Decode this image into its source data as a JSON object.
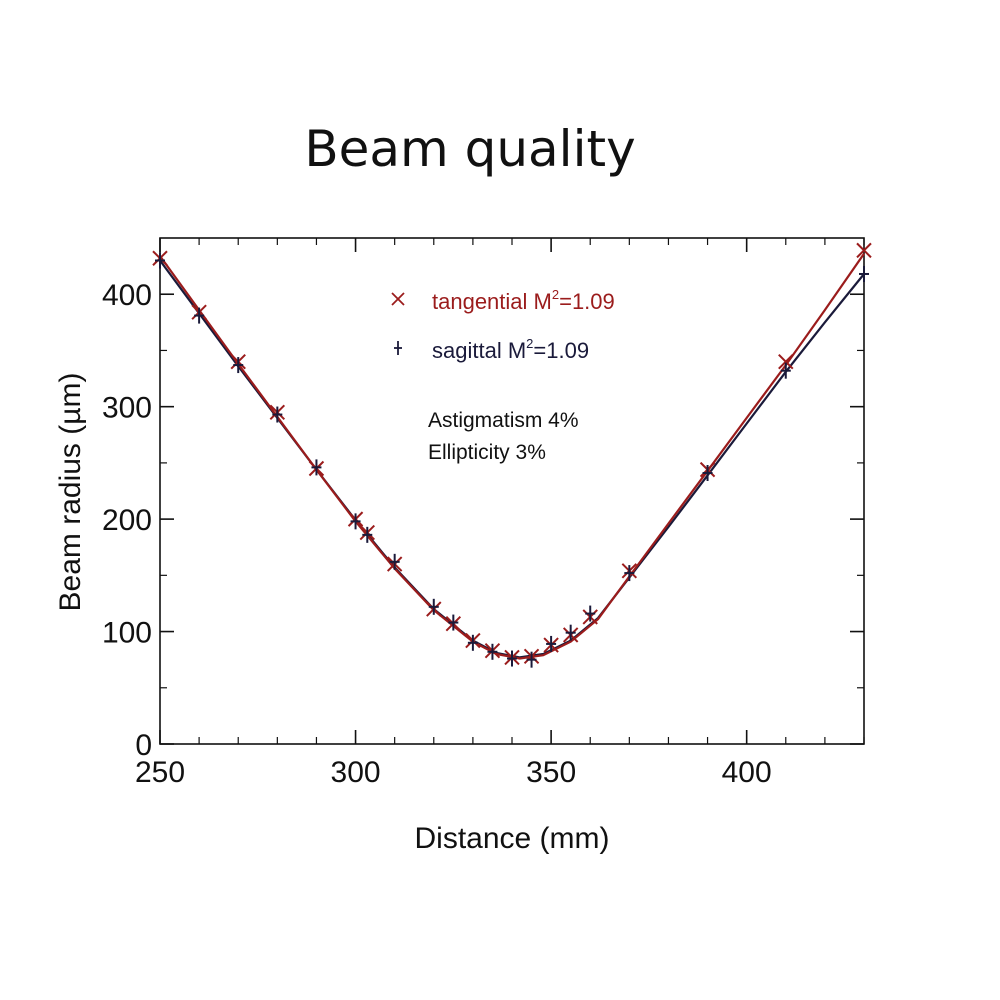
{
  "chart_data": {
    "type": "scatter",
    "title": "Beam quality",
    "xlabel": "Distance (mm)",
    "ylabel": "Beam radius (µm)",
    "xlim": [
      250,
      430
    ],
    "ylim": [
      0,
      450
    ],
    "xticks": [
      250,
      300,
      350,
      400
    ],
    "yticks": [
      0,
      100,
      200,
      300,
      400
    ],
    "grid": false,
    "legend_position": "top-center",
    "series": [
      {
        "name": "tangential M²=1.09",
        "legend_label": "tangential M",
        "legend_suffix": "=1.09",
        "marker": "x",
        "color": "#9b1c1c",
        "points": [
          [
            250,
            432
          ],
          [
            260,
            384
          ],
          [
            270,
            340
          ],
          [
            280,
            295
          ],
          [
            290,
            245
          ],
          [
            300,
            200
          ],
          [
            303,
            188
          ],
          [
            310,
            160
          ],
          [
            320,
            120
          ],
          [
            325,
            107
          ],
          [
            330,
            92
          ],
          [
            335,
            83
          ],
          [
            340,
            77
          ],
          [
            345,
            78
          ],
          [
            350,
            88
          ],
          [
            355,
            97
          ],
          [
            360,
            113
          ],
          [
            370,
            154
          ],
          [
            390,
            244
          ],
          [
            410,
            340
          ],
          [
            430,
            439
          ]
        ],
        "fit": [
          [
            250,
            434
          ],
          [
            260,
            386
          ],
          [
            270,
            338
          ],
          [
            280,
            291
          ],
          [
            290,
            244
          ],
          [
            300,
            198
          ],
          [
            310,
            156
          ],
          [
            320,
            119
          ],
          [
            330,
            91
          ],
          [
            336,
            80
          ],
          [
            342,
            76
          ],
          [
            348,
            79
          ],
          [
            355,
            91
          ],
          [
            362,
            111
          ],
          [
            370,
            149
          ],
          [
            380,
            196
          ],
          [
            390,
            243
          ],
          [
            400,
            290
          ],
          [
            410,
            337
          ],
          [
            420,
            386
          ],
          [
            430,
            436
          ]
        ]
      },
      {
        "name": "sagittal M²=1.09",
        "legend_label": "sagittal M",
        "legend_suffix": "=1.09",
        "marker": "+",
        "color": "#1a1a3a",
        "points": [
          [
            250,
            430
          ],
          [
            260,
            381
          ],
          [
            270,
            337
          ],
          [
            280,
            293
          ],
          [
            290,
            246
          ],
          [
            300,
            198
          ],
          [
            303,
            186
          ],
          [
            310,
            162
          ],
          [
            320,
            122
          ],
          [
            325,
            108
          ],
          [
            330,
            90
          ],
          [
            335,
            82
          ],
          [
            340,
            76
          ],
          [
            345,
            75
          ],
          [
            350,
            89
          ],
          [
            355,
            99
          ],
          [
            360,
            116
          ],
          [
            370,
            152
          ],
          [
            390,
            241
          ],
          [
            410,
            332
          ],
          [
            430,
            418
          ]
        ],
        "fit": [
          [
            250,
            430
          ],
          [
            260,
            383
          ],
          [
            270,
            336
          ],
          [
            280,
            290
          ],
          [
            290,
            244
          ],
          [
            300,
            199
          ],
          [
            310,
            157
          ],
          [
            320,
            120
          ],
          [
            330,
            92
          ],
          [
            336,
            81
          ],
          [
            342,
            77
          ],
          [
            348,
            80
          ],
          [
            355,
            92
          ],
          [
            362,
            112
          ],
          [
            370,
            148
          ],
          [
            380,
            193
          ],
          [
            390,
            239
          ],
          [
            400,
            285
          ],
          [
            410,
            331
          ],
          [
            420,
            375
          ],
          [
            430,
            418
          ]
        ]
      }
    ],
    "annotations": [
      "Astigmatism 4%",
      "Ellipticity 3%"
    ]
  }
}
